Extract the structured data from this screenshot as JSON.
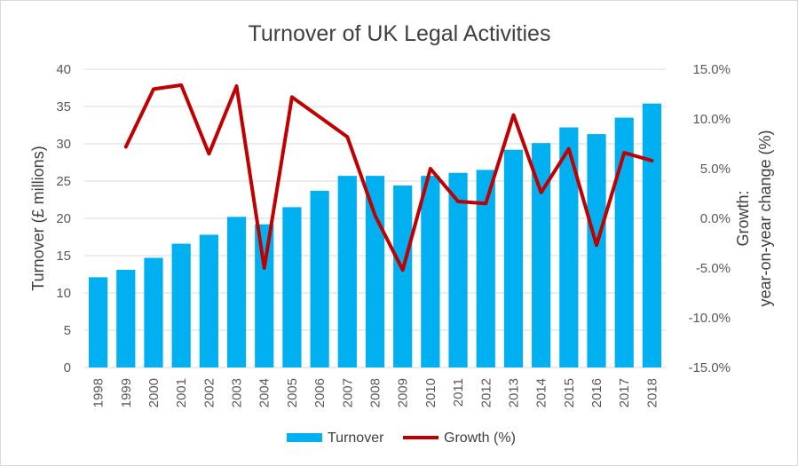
{
  "chart_data": {
    "type": "bar",
    "title": "Turnover of UK Legal Activities",
    "categories": [
      "1998",
      "1999",
      "2000",
      "2001",
      "2002",
      "2003",
      "2004",
      "2005",
      "2006",
      "2007",
      "2008",
      "2009",
      "2010",
      "2011",
      "2012",
      "2013",
      "2014",
      "2015",
      "2016",
      "2017",
      "2018"
    ],
    "series": [
      {
        "name": "Turnover",
        "type": "bar",
        "axis": "left",
        "color": "#00b0f0",
        "values": [
          12.1,
          13.1,
          14.7,
          16.6,
          17.8,
          20.2,
          19.2,
          21.5,
          23.7,
          25.7,
          25.7,
          24.4,
          25.7,
          26.1,
          26.5,
          29.2,
          30.1,
          32.2,
          31.3,
          33.5,
          35.4
        ]
      },
      {
        "name": "Growth (%)",
        "type": "line",
        "axis": "right",
        "color": "#c00000",
        "values": [
          null,
          7.2,
          13.0,
          13.4,
          6.5,
          13.3,
          -5.0,
          12.2,
          10.2,
          8.2,
          0.3,
          -5.2,
          5.0,
          1.7,
          1.5,
          10.4,
          2.6,
          7.0,
          -2.7,
          6.6,
          5.8
        ]
      }
    ],
    "ylabel": "Turnover (£ millions)",
    "ylim": [
      0,
      40
    ],
    "yticks": [
      "0",
      "5",
      "10",
      "15",
      "20",
      "25",
      "30",
      "35",
      "40"
    ],
    "y2label_line1": "Growth:",
    "y2label_line2": "year-on-year change (%)",
    "y2lim": [
      -15,
      15
    ],
    "y2ticks": [
      "-15.0%",
      "-10.0%",
      "-5.0%",
      "0.0%",
      "5.0%",
      "10.0%",
      "15.0%"
    ],
    "grid": true,
    "legend_position": "bottom"
  }
}
